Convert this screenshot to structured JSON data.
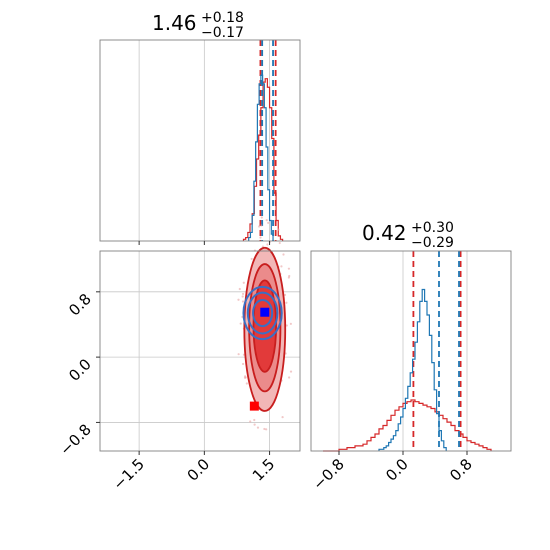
{
  "chart_data": {
    "type": "corner",
    "titles": [
      {
        "value": "1.46",
        "plus": "+0.18",
        "minus": "−0.17"
      },
      {
        "value": "0.42",
        "plus": "+0.30",
        "minus": "−0.29"
      }
    ],
    "x_axis_param1": {
      "range": [
        -2.4,
        2.2
      ],
      "ticks": [
        -1.5,
        0.0,
        1.5
      ],
      "tick_labels": [
        "−1.5",
        "0.0",
        "1.5"
      ]
    },
    "x_axis_param2": {
      "range": [
        -1.15,
        1.35
      ],
      "ticks": [
        -0.8,
        0.0,
        0.8
      ],
      "tick_labels": [
        "−0.8",
        "0.0",
        "0.8"
      ]
    },
    "y_axis_param2": {
      "range": [
        -1.15,
        1.3
      ],
      "ticks": [
        0.8,
        0.0,
        -0.8
      ],
      "tick_labels": [
        "0.8",
        "0.0",
        "−0.8"
      ]
    },
    "grid": true,
    "colors": {
      "red": "#d62728",
      "blue": "#1f77b4",
      "truth_blue": "#0000ff",
      "truth_red": "#ff0000"
    },
    "series": [
      {
        "color": "red",
        "hist_param1": {
          "edges_start": 0.9,
          "bin_width": 0.05,
          "heights": [
            0.01,
            0.02,
            0.05,
            0.1,
            0.16,
            0.32,
            0.48,
            0.62,
            0.78,
            0.93,
            0.95,
            0.9,
            0.78,
            0.6,
            0.28,
            0.12,
            0.03,
            0.01
          ],
          "quantiles": [
            1.29,
            1.64
          ]
        },
        "hist_param2": {
          "edges_start": -1.0,
          "bin_width": 0.05,
          "heights": [
            0.0,
            0.0,
            0.0,
            0.0,
            0.01,
            0.01,
            0.02,
            0.02,
            0.03,
            0.03,
            0.04,
            0.06,
            0.08,
            0.1,
            0.13,
            0.15,
            0.18,
            0.21,
            0.24,
            0.26,
            0.28,
            0.29,
            0.3,
            0.29,
            0.28,
            0.27,
            0.26,
            0.25,
            0.23,
            0.21,
            0.19,
            0.17,
            0.15,
            0.12,
            0.1,
            0.08,
            0.06,
            0.05,
            0.04,
            0.03,
            0.02,
            0.01
          ],
          "quantiles": [
            0.13,
            0.72
          ]
        },
        "contours": [
          {
            "center": [
              1.39,
              0.38
            ],
            "radii": [
              0.26,
              0.56
            ]
          },
          {
            "center": [
              1.39,
              0.36
            ],
            "radii": [
              0.36,
              0.78
            ]
          },
          {
            "center": [
              1.39,
              0.34
            ],
            "radii": [
              0.47,
              1.0
            ]
          }
        ],
        "truth": [
          1.15,
          -0.6
        ]
      },
      {
        "color": "blue",
        "hist_param1": {
          "edges_start": 1.02,
          "bin_width": 0.04,
          "heights": [
            0.02,
            0.05,
            0.15,
            0.35,
            0.58,
            0.8,
            0.92,
            0.97,
            0.92,
            0.78,
            0.55,
            0.3,
            0.12,
            0.04
          ],
          "quantiles": [
            1.33,
            1.58
          ]
        },
        "hist_param2": {
          "edges_start": -0.3,
          "bin_width": 0.03,
          "heights": [
            0.01,
            0.01,
            0.02,
            0.03,
            0.05,
            0.07,
            0.09,
            0.12,
            0.16,
            0.2,
            0.25,
            0.31,
            0.38,
            0.46,
            0.54,
            0.64,
            0.76,
            0.88,
            0.95,
            0.88,
            0.8,
            0.68,
            0.52,
            0.36,
            0.22,
            0.12,
            0.06,
            0.02
          ],
          "quantiles": [
            0.45,
            0.7
          ]
        },
        "contours": [
          {
            "center": [
              1.34,
              0.54
            ],
            "radii": [
              0.22,
              0.16
            ]
          },
          {
            "center": [
              1.34,
              0.54
            ],
            "radii": [
              0.34,
              0.25
            ]
          },
          {
            "center": [
              1.34,
              0.54
            ],
            "radii": [
              0.44,
              0.32
            ]
          }
        ],
        "truth": [
          1.39,
          0.55
        ]
      }
    ]
  }
}
